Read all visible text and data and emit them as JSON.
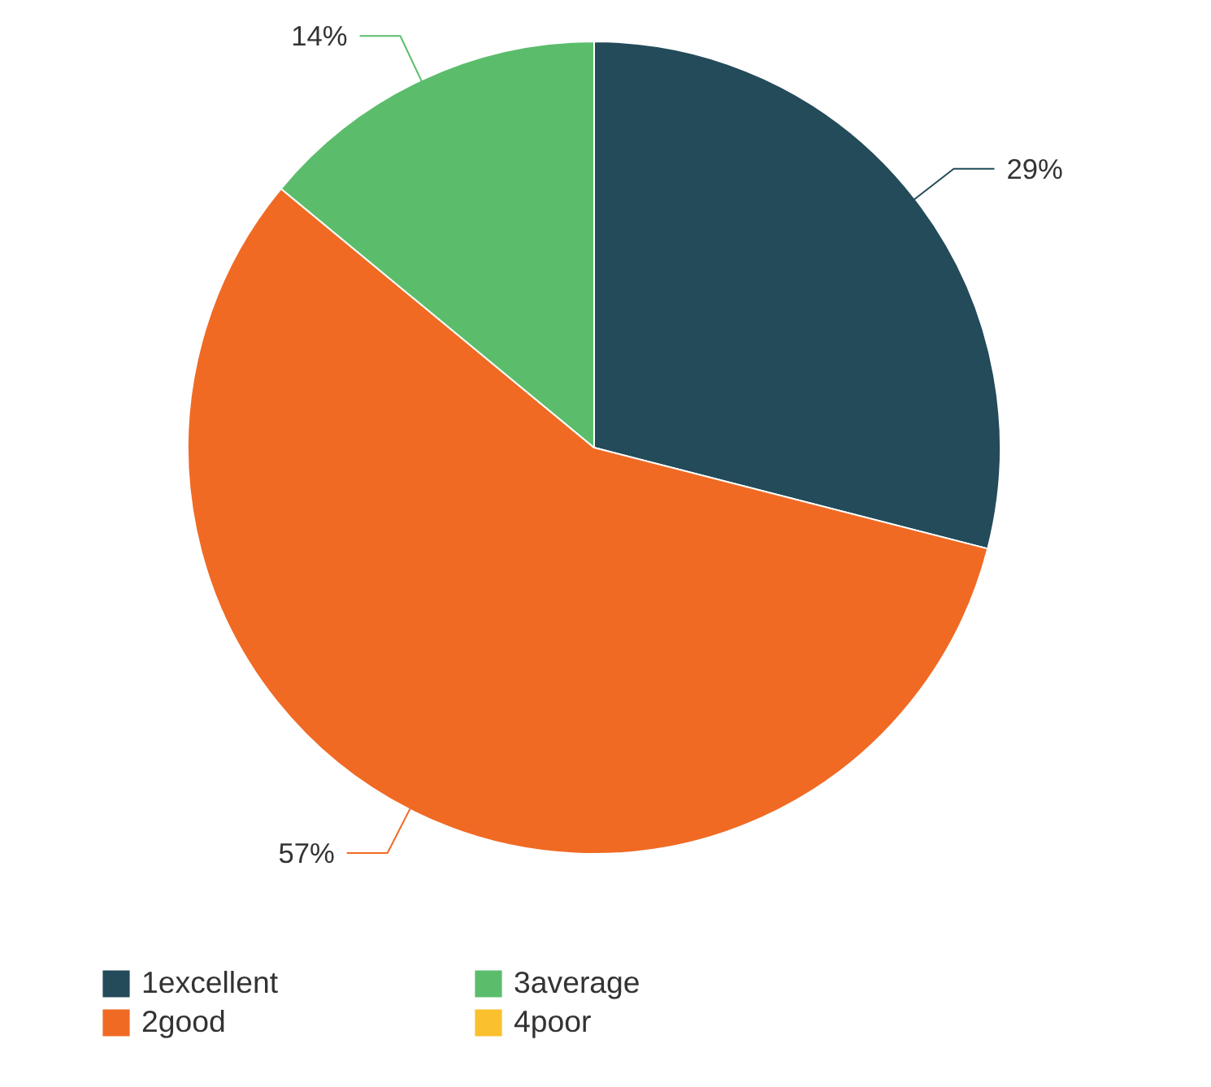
{
  "chart_data": {
    "type": "pie",
    "categories": [
      "1excellent",
      "2good",
      "3average",
      "4poor"
    ],
    "values": [
      29,
      57,
      14,
      0
    ],
    "colors": [
      "#234b5a",
      "#f06a24",
      "#5bbd6b",
      "#fbc02d"
    ],
    "value_labels": [
      "29%",
      "57%",
      "14%",
      null
    ],
    "legend": "bottom"
  }
}
